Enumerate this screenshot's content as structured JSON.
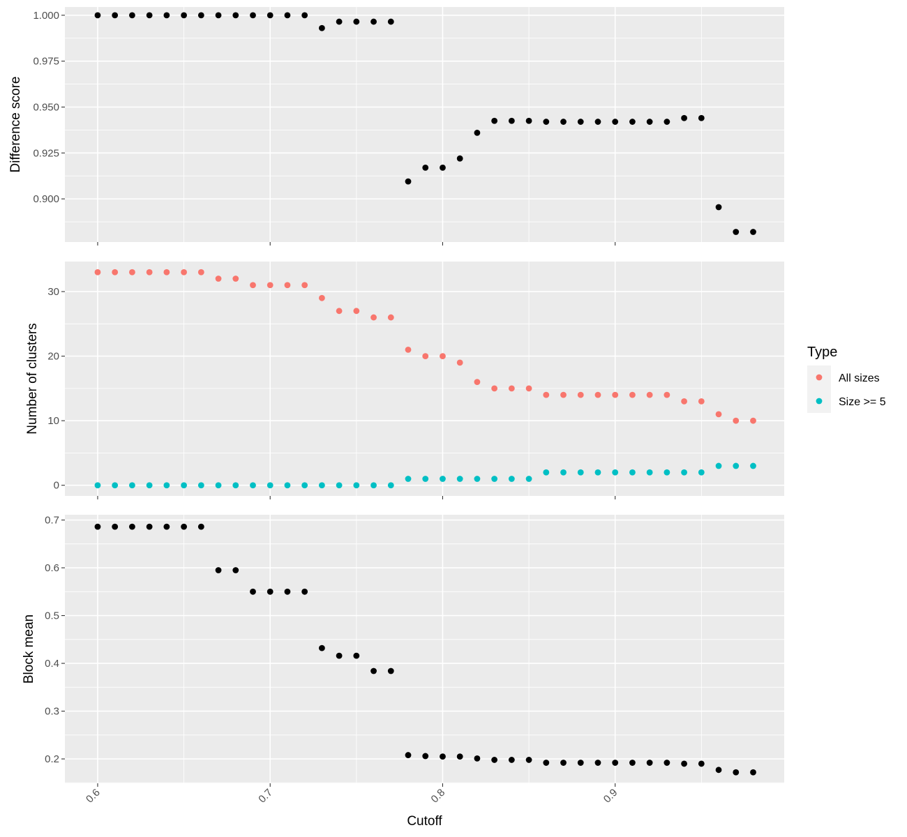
{
  "chart_data": {
    "type": "scatter",
    "xlabel": "Cutoff",
    "xlim": [
      0.581,
      0.998
    ],
    "x_ticks": [
      "0.6",
      "0.7",
      "0.8",
      "0.9"
    ],
    "x": [
      0.6,
      0.61,
      0.62,
      0.63,
      0.64,
      0.65,
      0.66,
      0.67,
      0.68,
      0.69,
      0.7,
      0.71,
      0.72,
      0.73,
      0.74,
      0.75,
      0.76,
      0.77,
      0.78,
      0.79,
      0.8,
      0.81,
      0.82,
      0.83,
      0.84,
      0.85,
      0.86,
      0.87,
      0.88,
      0.89,
      0.9,
      0.91,
      0.92,
      0.93,
      0.94,
      0.95,
      0.96,
      0.97,
      0.98
    ],
    "grid": true,
    "legend": {
      "title": "Type",
      "placement": "right",
      "entries": [
        {
          "label": "All sizes",
          "color": "#F8766D"
        },
        {
          "label": "Size >= 5",
          "color": "#00BFC4"
        }
      ]
    },
    "panels": [
      {
        "ylabel": "Difference score",
        "ylim": [
          0.8765,
          1.0045
        ],
        "y_ticks": [
          "0.900",
          "0.925",
          "0.950",
          "0.975",
          "1.000"
        ],
        "series": [
          {
            "color": "#000000",
            "values": [
              1.0,
              1.0,
              1.0,
              1.0,
              1.0,
              1.0,
              1.0,
              1.0,
              1.0,
              1.0,
              1.0,
              1.0,
              1.0,
              0.993,
              0.9965,
              0.9965,
              0.9965,
              0.9965,
              0.9095,
              0.917,
              0.917,
              0.922,
              0.936,
              0.9425,
              0.9425,
              0.9425,
              0.942,
              0.942,
              0.942,
              0.942,
              0.942,
              0.942,
              0.942,
              0.942,
              0.944,
              0.944,
              0.8955,
              0.882,
              0.882
            ]
          }
        ]
      },
      {
        "ylabel": "Number of clusters",
        "ylim": [
          -1.65,
          34.65
        ],
        "y_ticks": [
          "0",
          "10",
          "20",
          "30"
        ],
        "series": [
          {
            "name": "All sizes",
            "color": "#F8766D",
            "values": [
              33,
              33,
              33,
              33,
              33,
              33,
              33,
              32,
              32,
              31,
              31,
              31,
              31,
              29,
              27,
              27,
              26,
              26,
              21,
              20,
              20,
              19,
              16,
              15,
              15,
              15,
              14,
              14,
              14,
              14,
              14,
              14,
              14,
              14,
              13,
              13,
              11,
              10,
              10
            ]
          },
          {
            "name": "Size >= 5",
            "color": "#00BFC4",
            "values": [
              0,
              0,
              0,
              0,
              0,
              0,
              0,
              0,
              0,
              0,
              0,
              0,
              0,
              0,
              0,
              0,
              0,
              0,
              1,
              1,
              1,
              1,
              1,
              1,
              1,
              1,
              2,
              2,
              2,
              2,
              2,
              2,
              2,
              2,
              2,
              2,
              3,
              3,
              3
            ]
          }
        ]
      },
      {
        "ylabel": "Block mean",
        "ylim": [
          0.149,
          0.711
        ],
        "y_ticks": [
          "0.2",
          "0.3",
          "0.4",
          "0.5",
          "0.6",
          "0.7"
        ],
        "series": [
          {
            "color": "#000000",
            "values": [
              0.686,
              0.686,
              0.686,
              0.686,
              0.686,
              0.686,
              0.686,
              0.595,
              0.595,
              0.55,
              0.55,
              0.55,
              0.55,
              0.432,
              0.416,
              0.416,
              0.384,
              0.384,
              0.208,
              0.206,
              0.205,
              0.205,
              0.201,
              0.198,
              0.198,
              0.198,
              0.192,
              0.192,
              0.192,
              0.192,
              0.192,
              0.192,
              0.192,
              0.192,
              0.19,
              0.19,
              0.177,
              0.172,
              0.172
            ]
          }
        ]
      }
    ]
  }
}
